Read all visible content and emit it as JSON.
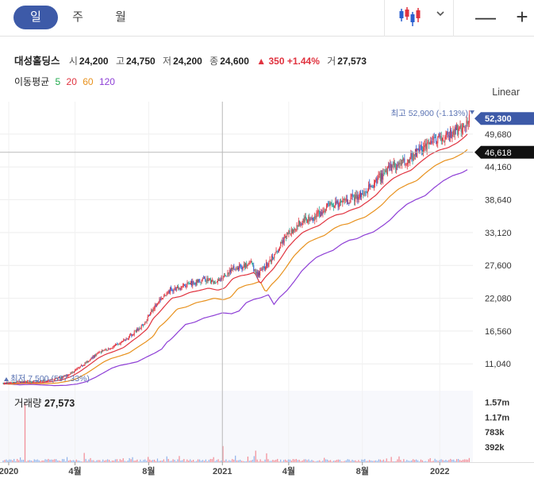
{
  "period_tabs": [
    {
      "label": "일",
      "active": true
    },
    {
      "label": "주",
      "active": false
    },
    {
      "label": "월",
      "active": false
    }
  ],
  "toolbar": {
    "chart_type_icon": "candlestick-icon",
    "dropdown_icon": "chevron-down-icon",
    "zoom_out": "—",
    "zoom_in": "+"
  },
  "stock": {
    "name": "대성홀딩스",
    "open_label": "시",
    "open": "24,200",
    "high_label": "고",
    "high": "24,750",
    "low_label": "저",
    "low": "24,200",
    "close_label": "종",
    "close": "24,600",
    "change": "350",
    "change_pct": "+1.44%",
    "volume_label": "거",
    "volume": "27,573"
  },
  "moving_avg": {
    "label": "이동평균",
    "periods": [
      "5",
      "20",
      "60",
      "120"
    ],
    "colors": [
      "#1ea94b",
      "#e0333f",
      "#e8911d",
      "#8e3fd6"
    ]
  },
  "scale_label": "Linear",
  "colors": {
    "up": "#e0333f",
    "down": "#2a5fd0",
    "candle_mix": "#2fa596",
    "ma5": "#1ea94b",
    "ma20": "#e0333f",
    "ma60": "#e8911d",
    "ma120": "#8e3fd6",
    "price_tag": "#3d5aa8",
    "crosshair_tag": "#111111",
    "annotation": "#5a73b3"
  },
  "chart_data": {
    "type": "candlestick",
    "x_ticks": [
      "2020",
      "4월",
      "8월",
      "2021",
      "4월",
      "8월",
      "2022"
    ],
    "y_ticks": [
      49680,
      44160,
      38640,
      33120,
      27600,
      22080,
      16560,
      11040
    ],
    "y_tick_labels": [
      "49,680",
      "44,160",
      "38,640",
      "33,120",
      "27,600",
      "22,080",
      "16,560",
      "11,040"
    ],
    "ylim": [
      6800,
      53800
    ],
    "current_price": 52300,
    "current_price_label": "52,300",
    "crosshair_price": 46618,
    "crosshair_price_label": "46,618",
    "crosshair_date_index": 11.9,
    "max_annotation": "최고 52,900 (-1.13%)",
    "min_annotation": "최저 7,500 (597.33%)",
    "close_path": [
      [
        0.0,
        7800
      ],
      [
        0.6,
        8000
      ],
      [
        1.2,
        8050
      ],
      [
        1.9,
        8100
      ],
      [
        2.5,
        8300
      ],
      [
        3.1,
        8700
      ],
      [
        3.6,
        9300
      ],
      [
        4.1,
        10300
      ],
      [
        4.6,
        11500
      ],
      [
        5.0,
        12500
      ],
      [
        5.4,
        13200
      ],
      [
        5.9,
        13800
      ],
      [
        6.4,
        14500
      ],
      [
        6.9,
        15800
      ],
      [
        7.3,
        16800
      ],
      [
        7.7,
        18000
      ],
      [
        8.0,
        19800
      ],
      [
        8.3,
        20800
      ],
      [
        8.6,
        22000
      ],
      [
        9.0,
        23500
      ],
      [
        9.5,
        23800
      ],
      [
        10.0,
        24500
      ],
      [
        10.5,
        24800
      ],
      [
        11.0,
        25200
      ],
      [
        11.5,
        24800
      ],
      [
        11.9,
        25200
      ],
      [
        12.3,
        26800
      ],
      [
        12.7,
        27300
      ],
      [
        13.1,
        27500
      ],
      [
        13.5,
        27900
      ],
      [
        13.8,
        25800
      ],
      [
        14.1,
        27100
      ],
      [
        14.5,
        28400
      ],
      [
        14.9,
        30200
      ],
      [
        15.3,
        32200
      ],
      [
        15.7,
        33600
      ],
      [
        16.1,
        34800
      ],
      [
        16.5,
        35400
      ],
      [
        17.0,
        36000
      ],
      [
        17.5,
        37200
      ],
      [
        17.9,
        37800
      ],
      [
        18.3,
        38000
      ],
      [
        18.7,
        38600
      ],
      [
        19.2,
        39100
      ],
      [
        19.7,
        40200
      ],
      [
        20.1,
        41200
      ],
      [
        20.5,
        42600
      ],
      [
        21.0,
        44000
      ],
      [
        21.5,
        44800
      ],
      [
        22.0,
        45400
      ],
      [
        22.5,
        46800
      ],
      [
        23.0,
        48000
      ],
      [
        23.5,
        48800
      ],
      [
        24.0,
        49200
      ],
      [
        24.5,
        50000
      ],
      [
        24.9,
        51000
      ],
      [
        25.3,
        52300
      ]
    ],
    "ma20_offsets": [
      [
        0,
        0.985
      ],
      [
        9,
        0.94
      ],
      [
        15,
        0.95
      ],
      [
        25.3,
        0.965
      ]
    ],
    "ma60_offsets": [
      [
        0,
        0.985
      ],
      [
        9,
        0.86
      ],
      [
        15,
        0.9
      ],
      [
        25.3,
        0.93
      ]
    ],
    "ma120_offsets": [
      [
        0,
        0.99
      ],
      [
        9,
        0.74
      ],
      [
        15,
        0.82
      ],
      [
        25.3,
        0.88
      ]
    ],
    "volume_ticks": [
      "1.57m",
      "1.17m",
      "783k",
      "392k"
    ],
    "volume_max": 1700000,
    "volume_spikes": [
      [
        1.2,
        1540000
      ],
      [
        11.9,
        420000
      ],
      [
        4.4,
        240000
      ],
      [
        8.9,
        150000
      ],
      [
        12.6,
        170000
      ],
      [
        13.7,
        300000
      ],
      [
        14.3,
        230000
      ],
      [
        9.6,
        160000
      ],
      [
        11.4,
        130000
      ]
    ]
  }
}
